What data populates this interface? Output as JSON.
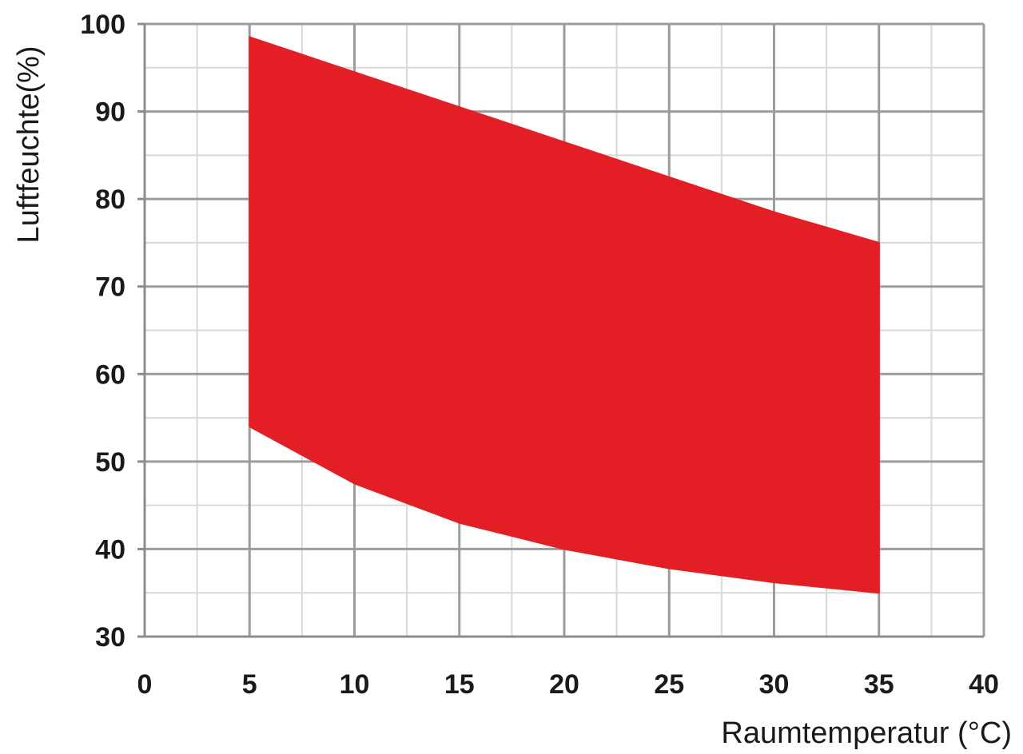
{
  "chart_data": {
    "type": "area",
    "xlabel": "Raumtemperatur  (°C)",
    "ylabel": "Luftfeuchte(%)",
    "xlim": [
      0,
      40
    ],
    "ylim": [
      30,
      100
    ],
    "x_ticks": [
      0,
      5,
      10,
      15,
      20,
      25,
      30,
      35,
      40
    ],
    "y_ticks": [
      30,
      40,
      50,
      60,
      70,
      80,
      90,
      100
    ],
    "x_tick_labels": [
      "0",
      "5",
      "10",
      "15",
      "20",
      "25",
      "30",
      "35",
      "40"
    ],
    "y_tick_labels": [
      "30",
      "40",
      "50",
      "60",
      "70",
      "80",
      "90",
      "100"
    ],
    "grid": true,
    "minor_grid": true,
    "legend": "none",
    "series": [
      {
        "x": [
          5,
          10,
          15,
          20,
          25,
          30,
          35
        ],
        "upper": [
          98.5,
          94.5,
          90.5,
          86.5,
          82.5,
          78.5,
          75
        ],
        "lower": [
          54,
          47.5,
          43,
          40,
          37.8,
          36.2,
          35
        ],
        "color": "#e31e24"
      }
    ],
    "colors": {
      "fill": "#e31e24",
      "major_grid": "#9c9c9c",
      "minor_grid": "#d9d9d9",
      "axis": "#8c8c8c",
      "text": "#1a1a1a"
    }
  }
}
